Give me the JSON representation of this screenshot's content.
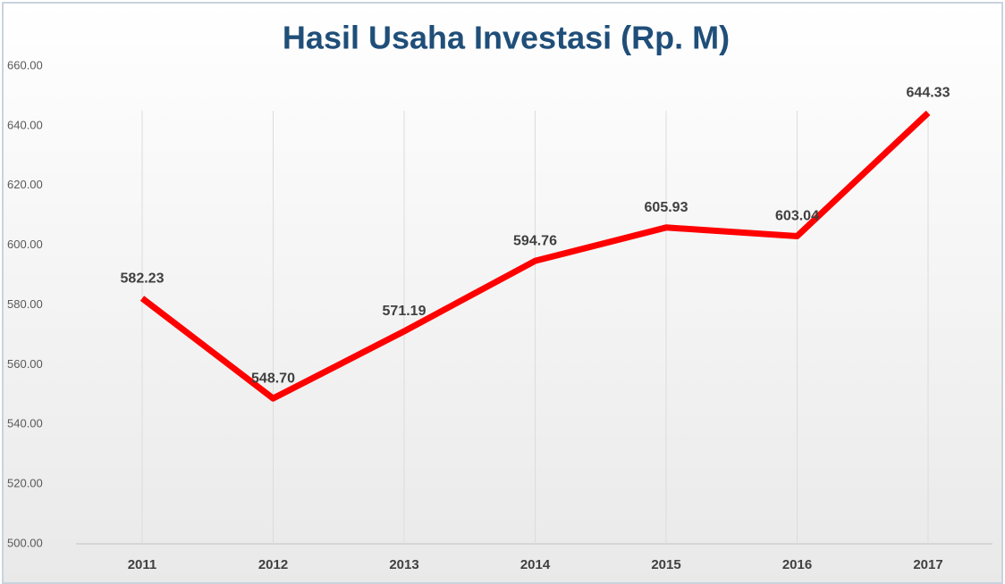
{
  "chart_data": {
    "type": "line",
    "title": "Hasil Usaha Investasi (Rp. M)",
    "categories": [
      "2011",
      "2012",
      "2013",
      "2014",
      "2015",
      "2016",
      "2017"
    ],
    "values": [
      582.23,
      548.7,
      571.19,
      594.76,
      605.93,
      603.04,
      644.33
    ],
    "value_labels": [
      "582.23",
      "548.70",
      "571.19",
      "594.76",
      "605.93",
      "603.04",
      "644.33"
    ],
    "color": "#ff0000",
    "ylim": [
      500,
      660
    ],
    "yticks": [
      {
        "value": 500,
        "label": "500.00"
      },
      {
        "value": 520,
        "label": "520.00"
      },
      {
        "value": 540,
        "label": "540.00"
      },
      {
        "value": 560,
        "label": "560.00"
      },
      {
        "value": 580,
        "label": "580.00"
      },
      {
        "value": 600,
        "label": "600.00"
      },
      {
        "value": 620,
        "label": "620.00"
      },
      {
        "value": 640,
        "label": "640.00"
      },
      {
        "value": 660,
        "label": "660.00"
      }
    ],
    "grid": false,
    "xgrid": true
  }
}
